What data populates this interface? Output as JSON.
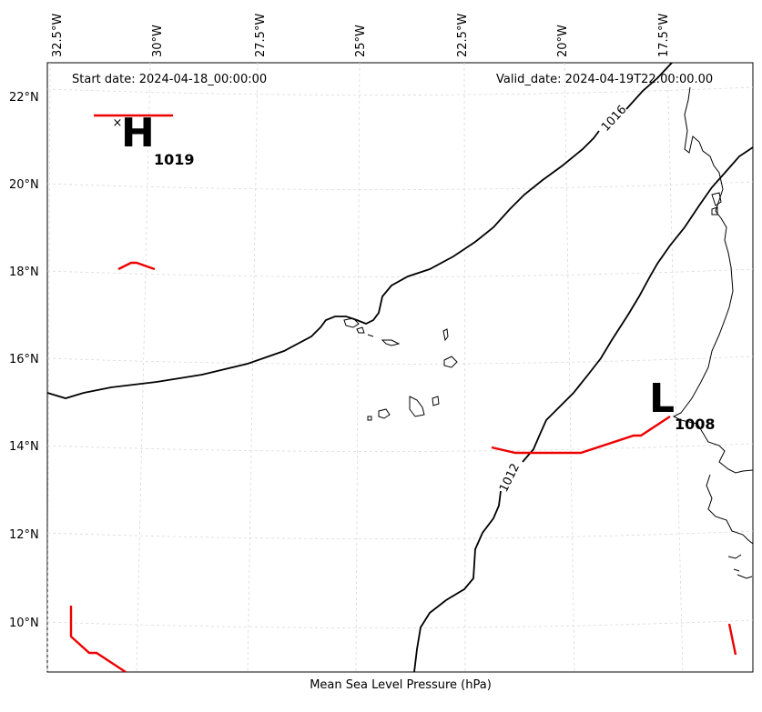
{
  "header": {
    "start_date": "Start date: 2024-04-18_00:00:00",
    "valid_date": "Valid_date: 2024-04-19T22:00:00.00"
  },
  "xlabel": "Mean Sea Level Pressure (hPa)",
  "lon_labels": [
    "32.5°W",
    "30°W",
    "27.5°W",
    "25°W",
    "22.5°W",
    "20°W",
    "17.5°W"
  ],
  "lat_labels": [
    "22°N",
    "20°N",
    "18°N",
    "16°N",
    "14°N",
    "12°N",
    "10°N"
  ],
  "centers": {
    "high": {
      "letter": "H",
      "value": "1019"
    },
    "low": {
      "letter": "L",
      "value": "1008"
    }
  },
  "isobars": [
    {
      "label": "1016"
    },
    {
      "label": "1012"
    }
  ],
  "colors": {
    "isobar": "#000000",
    "trough": "#ee0000",
    "coast": "#000000",
    "grid": "#cccccc"
  }
}
